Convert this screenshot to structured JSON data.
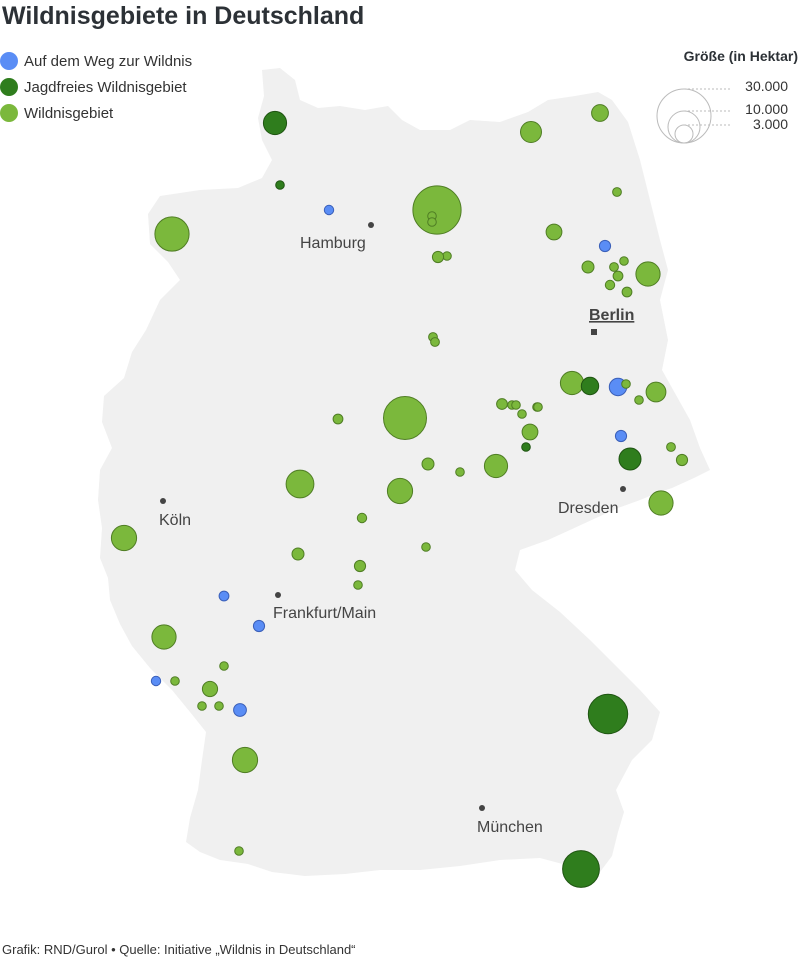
{
  "title": "Wildnisgebiete in Deutschland",
  "legend": [
    {
      "label": "Auf dem Weg zur Wildnis",
      "color": "#5a8df5",
      "category": "weg"
    },
    {
      "label": "Jagdfreies Wildnisgebiet",
      "color": "#2f7d1d",
      "category": "jagdfrei"
    },
    {
      "label": "Wildnisgebiet",
      "color": "#7bb83c",
      "category": "wildnis"
    }
  ],
  "size_legend": {
    "title": "Größe (in Hektar)",
    "entries": [
      {
        "label": "30.000",
        "hectares": 30000
      },
      {
        "label": "10.000",
        "hectares": 10000
      },
      {
        "label": "3.000",
        "hectares": 3000
      }
    ]
  },
  "cities": [
    {
      "name": "Hamburg",
      "capital": false
    },
    {
      "name": "Berlin",
      "capital": true
    },
    {
      "name": "Köln",
      "capital": false
    },
    {
      "name": "Dresden",
      "capital": false
    },
    {
      "name": "Frankfurt/Main",
      "capital": false
    },
    {
      "name": "München",
      "capital": false
    }
  ],
  "areas": [
    {
      "category": "jagdfrei",
      "hectares": 5500
    },
    {
      "category": "jagdfrei",
      "hectares": 500
    },
    {
      "category": "weg",
      "hectares": 900
    },
    {
      "category": "wildnis",
      "hectares": 12000
    },
    {
      "category": "wildnis",
      "hectares": 4500
    },
    {
      "category": "wildnis",
      "hectares": 2900
    },
    {
      "category": "wildnis",
      "hectares": 2600
    },
    {
      "category": "wildnis",
      "hectares": 24000
    },
    {
      "category": "wildnis",
      "hectares": 500
    },
    {
      "category": "wildnis",
      "hectares": 500
    },
    {
      "category": "wildnis",
      "hectares": 500
    },
    {
      "category": "wildnis",
      "hectares": 1300
    },
    {
      "category": "wildnis",
      "hectares": 800
    },
    {
      "category": "weg",
      "hectares": 1300
    },
    {
      "category": "wildnis",
      "hectares": 1500
    },
    {
      "category": "wildnis",
      "hectares": 6000
    },
    {
      "category": "wildnis",
      "hectares": 800
    },
    {
      "category": "wildnis",
      "hectares": 700
    },
    {
      "category": "wildnis",
      "hectares": 1000
    },
    {
      "category": "wildnis",
      "hectares": 900
    },
    {
      "category": "wildnis",
      "hectares": 1000
    },
    {
      "category": "wildnis",
      "hectares": 800
    },
    {
      "category": "wildnis",
      "hectares": 800
    },
    {
      "category": "wildnis",
      "hectares": 5500
    },
    {
      "category": "jagdfrei",
      "hectares": 3100
    },
    {
      "category": "weg",
      "hectares": 3100
    },
    {
      "category": "wildnis",
      "hectares": 500
    },
    {
      "category": "wildnis",
      "hectares": 4000
    },
    {
      "category": "wildnis",
      "hectares": 700
    },
    {
      "category": "wildnis",
      "hectares": 1200
    },
    {
      "category": "wildnis",
      "hectares": 700
    },
    {
      "category": "wildnis",
      "hectares": 500
    },
    {
      "category": "wildnis",
      "hectares": 500
    },
    {
      "category": "wildnis",
      "hectares": 500
    },
    {
      "category": "wildnis",
      "hectares": 400
    },
    {
      "category": "jagdfrei",
      "hectares": 400
    },
    {
      "category": "wildnis",
      "hectares": 2600
    },
    {
      "category": "jagdfrei",
      "hectares": 800
    },
    {
      "category": "weg",
      "hectares": 1300
    },
    {
      "category": "jagdfrei",
      "hectares": 5000
    },
    {
      "category": "wildnis",
      "hectares": 800
    },
    {
      "category": "wildnis",
      "hectares": 1300
    },
    {
      "category": "wildnis",
      "hectares": 1000
    },
    {
      "category": "wildnis",
      "hectares": 1500
    },
    {
      "category": "wildnis",
      "hectares": 700
    },
    {
      "category": "wildnis",
      "hectares": 5500
    },
    {
      "category": "wildnis",
      "hectares": 8000
    },
    {
      "category": "wildnis",
      "hectares": 19000
    },
    {
      "category": "wildnis",
      "hectares": 6500
    },
    {
      "category": "wildnis",
      "hectares": 6000
    },
    {
      "category": "wildnis",
      "hectares": 900
    },
    {
      "category": "wildnis",
      "hectares": 700
    },
    {
      "category": "wildnis",
      "hectares": 6500
    },
    {
      "category": "wildnis",
      "hectares": 1500
    },
    {
      "category": "wildnis",
      "hectares": 1300
    },
    {
      "category": "wildnis",
      "hectares": 700
    },
    {
      "category": "weg",
      "hectares": 1000
    },
    {
      "category": "weg",
      "hectares": 1300
    },
    {
      "category": "wildnis",
      "hectares": 6000
    },
    {
      "category": "wildnis",
      "hectares": 700
    },
    {
      "category": "weg",
      "hectares": 900
    },
    {
      "category": "wildnis",
      "hectares": 700
    },
    {
      "category": "wildnis",
      "hectares": 2400
    },
    {
      "category": "wildnis",
      "hectares": 600
    },
    {
      "category": "wildnis",
      "hectares": 600
    },
    {
      "category": "weg",
      "hectares": 1700
    },
    {
      "category": "wildnis",
      "hectares": 6500
    },
    {
      "category": "jagdfrei",
      "hectares": 16000
    },
    {
      "category": "jagdfrei",
      "hectares": 14000
    },
    {
      "category": "wildnis",
      "hectares": 700
    }
  ],
  "footer": "Grafik: RND/Gurol • Quelle: Initiative „Wildnis in Deutschland“"
}
